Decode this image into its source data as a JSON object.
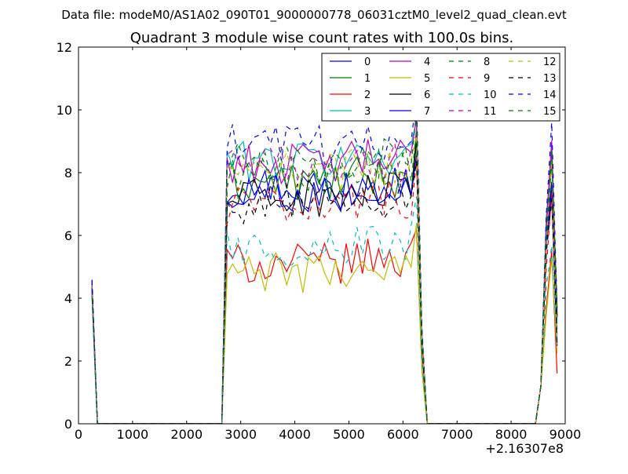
{
  "figure": {
    "suptitle": "Data file: modeM0/AS1A02_090T01_9000000778_06031cztM0_level2_quad_clean.evt"
  },
  "chart_data": {
    "type": "line",
    "title": "Quadrant 3 module wise count rates with 100.0s bins.",
    "xlabel": "",
    "ylabel": "",
    "x_offset_label": "+2.16307e8",
    "xlim": [
      0,
      9000
    ],
    "ylim": [
      0,
      12
    ],
    "xticks": [
      0,
      1000,
      2000,
      3000,
      4000,
      5000,
      6000,
      7000,
      8000,
      9000
    ],
    "yticks": [
      0,
      2,
      4,
      6,
      8,
      10,
      12
    ],
    "grid": false,
    "legend_position": "top-right",
    "legend_columns": 4,
    "series": [
      {
        "name": "0",
        "color": "#0000ff",
        "style": "solid",
        "level": 7.6
      },
      {
        "name": "1",
        "color": "#008000",
        "style": "solid",
        "level": 7.7
      },
      {
        "name": "2",
        "color": "#ff0000",
        "style": "solid",
        "level": 5.1
      },
      {
        "name": "3",
        "color": "#00bfbf",
        "style": "solid",
        "level": 8.4
      },
      {
        "name": "4",
        "color": "#bf00bf",
        "style": "solid",
        "level": 8.3
      },
      {
        "name": "5",
        "color": "#bfbf00",
        "style": "solid",
        "level": 4.8
      },
      {
        "name": "6",
        "color": "#000000",
        "style": "solid",
        "level": 7.2
      },
      {
        "name": "7",
        "color": "#0000ff",
        "style": "solid",
        "level": 7.4
      },
      {
        "name": "8",
        "color": "#008000",
        "style": "dashed",
        "level": 8.0
      },
      {
        "name": "9",
        "color": "#ff0000",
        "style": "dashed",
        "level": 7.0
      },
      {
        "name": "10",
        "color": "#00bfbf",
        "style": "dashed",
        "level": 5.6
      },
      {
        "name": "11",
        "color": "#bf00bf",
        "style": "dashed",
        "level": 8.2
      },
      {
        "name": "12",
        "color": "#bfbf00",
        "style": "dashed",
        "level": 8.0
      },
      {
        "name": "13",
        "color": "#000000",
        "style": "dashed",
        "level": 7.0
      },
      {
        "name": "14",
        "color": "#0000ff",
        "style": "dashed",
        "level": 8.9
      },
      {
        "name": "15",
        "color": "#008000",
        "style": "dashed",
        "level": 8.3
      }
    ],
    "active_intervals": [
      {
        "start": 250,
        "end": 350,
        "start_value": 4.3
      },
      {
        "start": 2650,
        "end": 6450,
        "start_value": 0
      },
      {
        "start": 8450,
        "end": 8850,
        "start_value": 0
      }
    ]
  }
}
